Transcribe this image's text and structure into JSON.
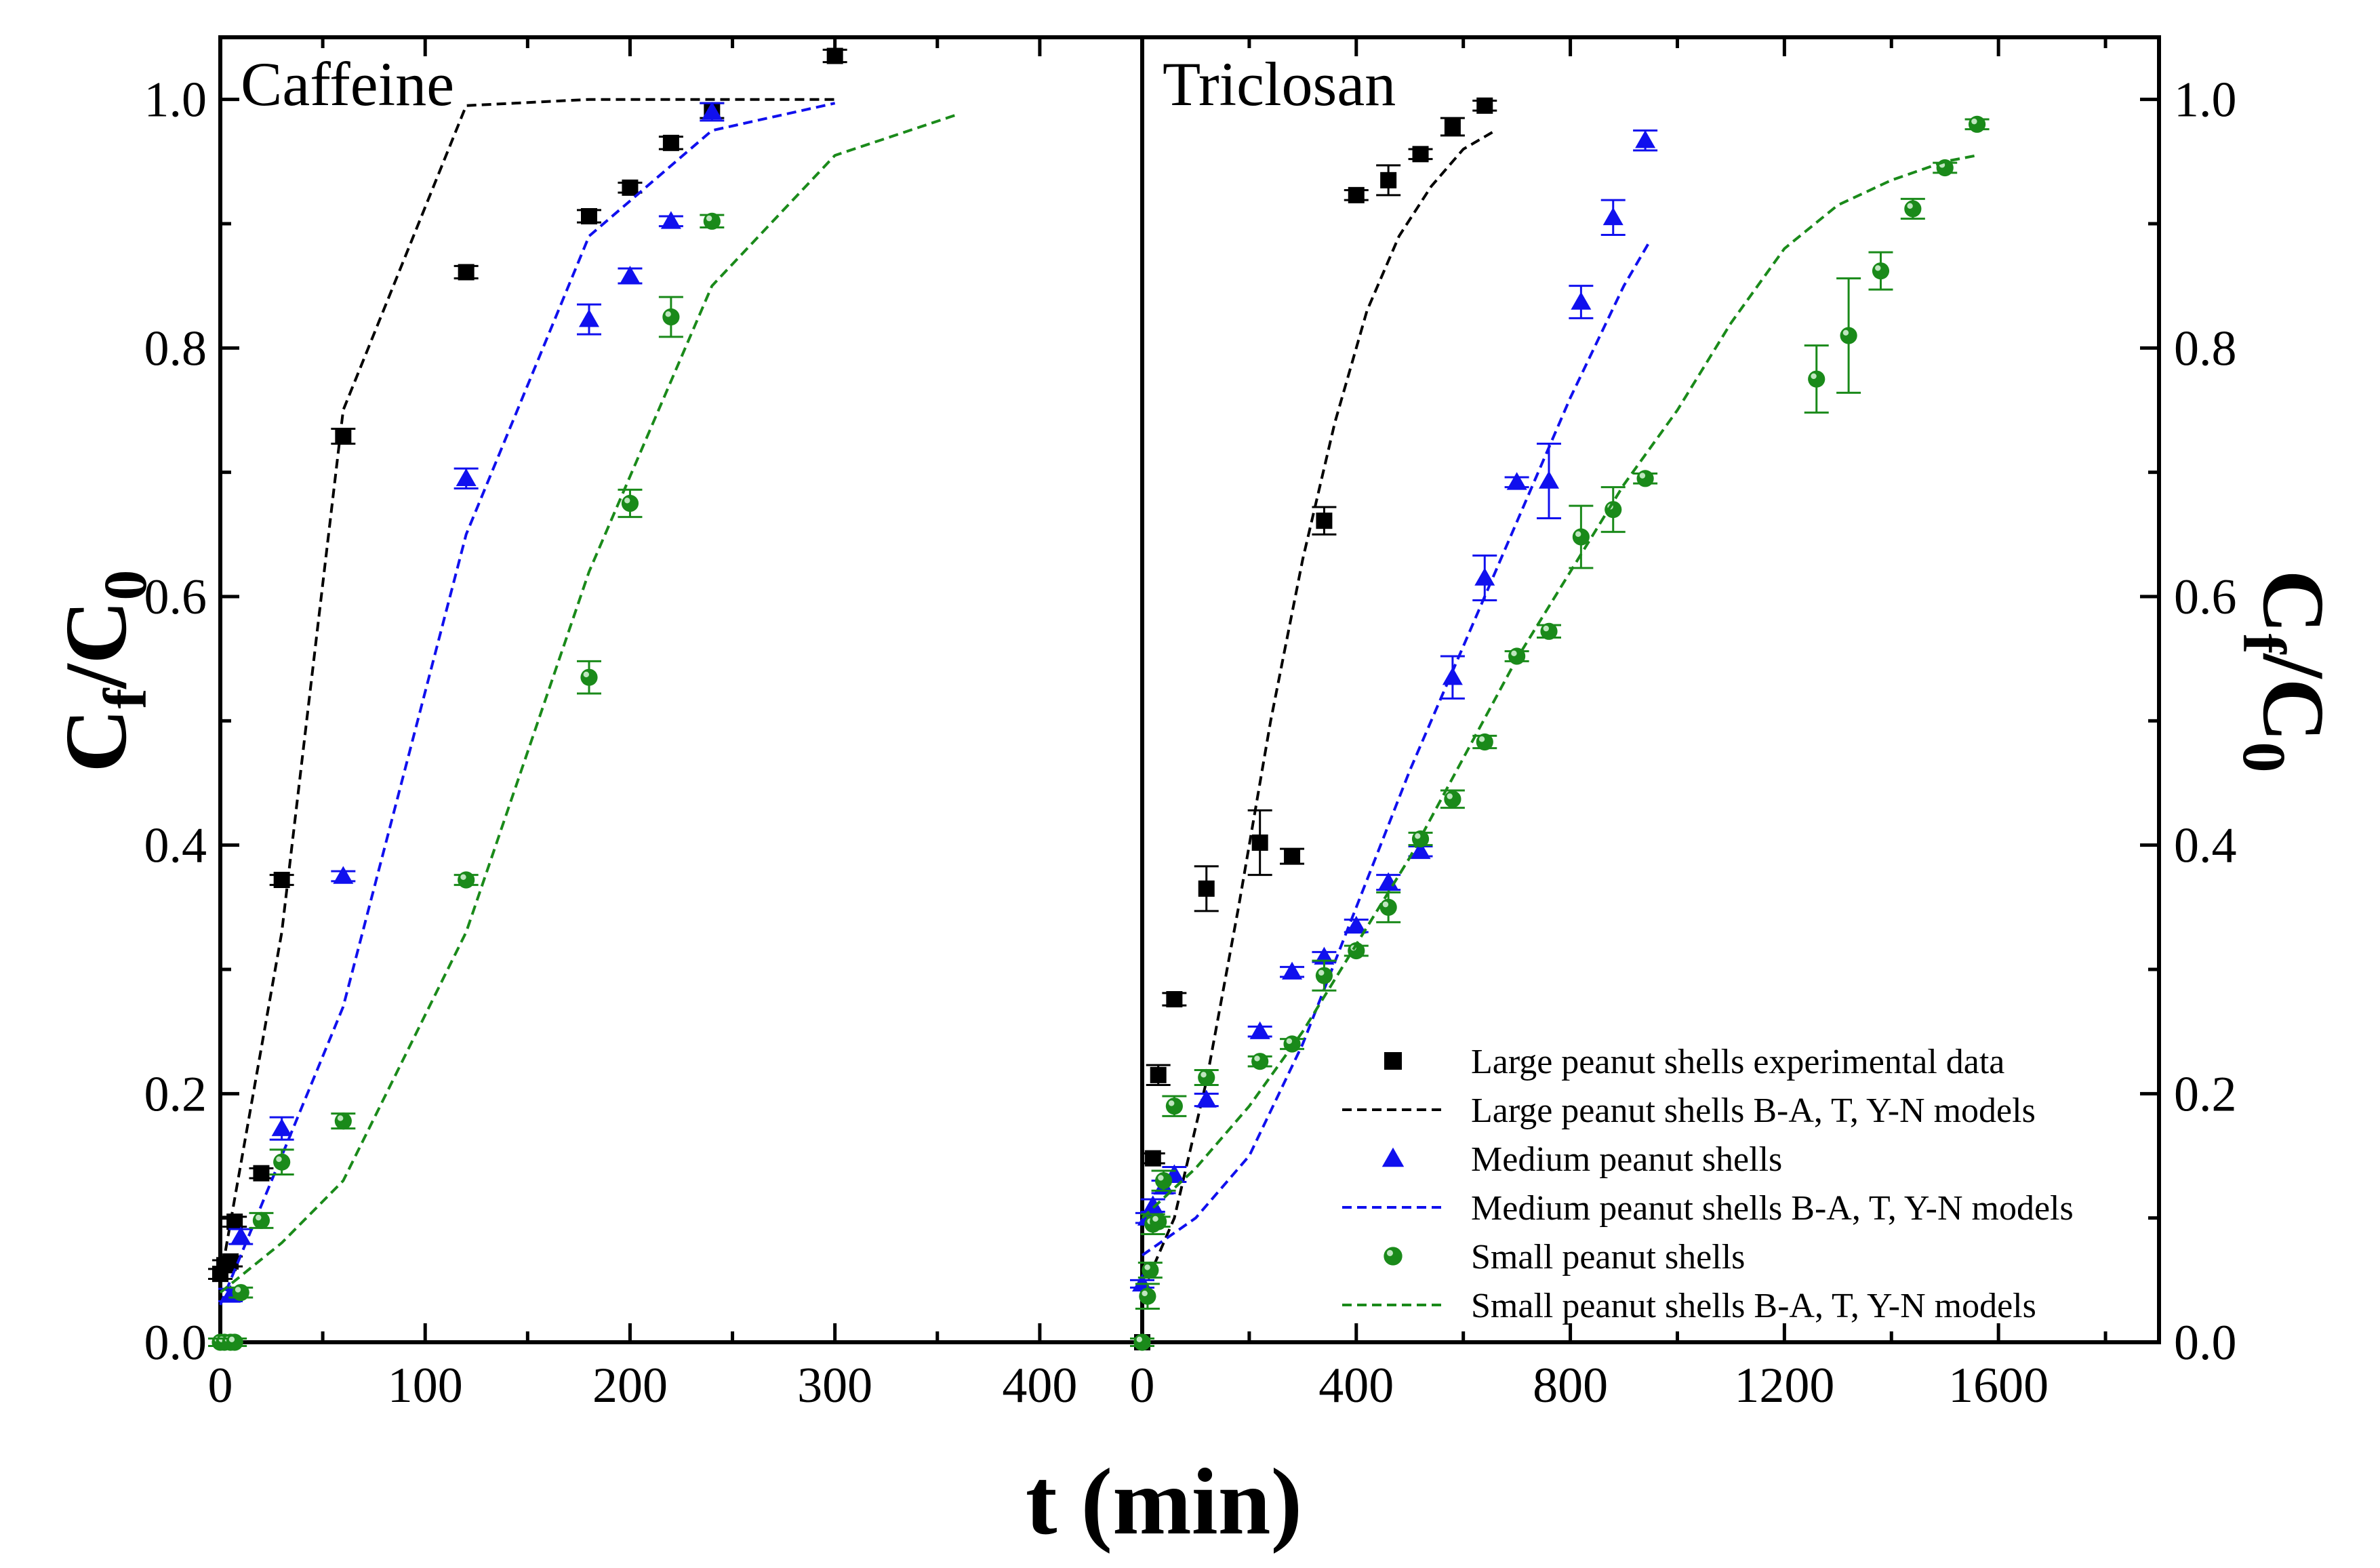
{
  "chart_data": [
    {
      "type": "scatter",
      "title": "Caffeine",
      "xlabel": "t (min)",
      "ylabel": "Cf/C0",
      "xlim": [
        0,
        450
      ],
      "ylim": [
        0,
        1.05
      ],
      "xticks": [
        0,
        100,
        200,
        300,
        400
      ],
      "xtick_labels": [
        "0",
        "100",
        "200",
        "300",
        "400"
      ],
      "yticks": [
        0.0,
        0.2,
        0.4,
        0.6,
        0.8,
        1.0
      ],
      "ytick_labels": [
        "0.0",
        "0.2",
        "0.4",
        "0.6",
        "0.8",
        "1.0"
      ],
      "grid": false,
      "series": [
        {
          "name": "Large peanut shells experimental data",
          "kind": "points",
          "marker": "square",
          "color": "#000000",
          "x": [
            0,
            2,
            5,
            7,
            20,
            30,
            60,
            120,
            180,
            200,
            220,
            240,
            300
          ],
          "y": [
            0.055,
            0.062,
            0.065,
            0.097,
            0.136,
            0.372,
            0.729,
            0.861,
            0.906,
            0.929,
            0.965,
            0.991,
            1.035
          ],
          "err": [
            0.004,
            0.004,
            0.004,
            0.004,
            0.004,
            0.004,
            0.006,
            0.005,
            0.005,
            0.004,
            0.005,
            0.006,
            0.005
          ]
        },
        {
          "name": "Large peanut shells B-A, T, Y-N models",
          "kind": "line",
          "color": "#000000",
          "x": [
            0,
            30,
            60,
            120,
            180,
            240,
            300
          ],
          "y": [
            0.05,
            0.33,
            0.75,
            0.995,
            1.0,
            1.0,
            1.0
          ]
        },
        {
          "name": "Medium peanut shells",
          "kind": "points",
          "marker": "triangle",
          "color": "#1010ee",
          "x": [
            5,
            10,
            30,
            60,
            120,
            180,
            200,
            220,
            240
          ],
          "y": [
            0.038,
            0.085,
            0.172,
            0.375,
            0.695,
            0.823,
            0.858,
            0.902,
            0.99
          ],
          "err": [
            0.005,
            0.006,
            0.009,
            0.004,
            0.008,
            0.012,
            0.006,
            0.004,
            0.007
          ]
        },
        {
          "name": "Medium peanut shells B-A, T, Y-N models",
          "kind": "line",
          "color": "#1010ee",
          "x": [
            0,
            30,
            60,
            120,
            180,
            240,
            300
          ],
          "y": [
            0.03,
            0.15,
            0.27,
            0.65,
            0.89,
            0.975,
            0.997
          ]
        },
        {
          "name": "Small peanut shells",
          "kind": "points",
          "marker": "circle",
          "color": "#1a8a1a",
          "x": [
            0,
            2,
            5,
            7,
            10,
            20,
            30,
            60,
            120,
            180,
            200,
            220,
            240
          ],
          "y": [
            0.0,
            0.0,
            0.0,
            0.0,
            0.04,
            0.098,
            0.145,
            0.178,
            0.372,
            0.535,
            0.675,
            0.825,
            0.902
          ],
          "err": [
            0.003,
            0.003,
            0.003,
            0.003,
            0.004,
            0.006,
            0.01,
            0.006,
            0.004,
            0.013,
            0.011,
            0.016,
            0.005
          ]
        },
        {
          "name": "Small peanut shells B-A, T, Y-N models",
          "kind": "line",
          "color": "#1a8a1a",
          "x": [
            0,
            30,
            60,
            120,
            180,
            240,
            300,
            360
          ],
          "y": [
            0.04,
            0.08,
            0.13,
            0.33,
            0.62,
            0.85,
            0.955,
            0.988
          ]
        }
      ]
    },
    {
      "type": "scatter",
      "title": "Triclosan",
      "xlabel": "t (min)",
      "ylabel": "Cf/C0",
      "xlim": [
        0,
        1900
      ],
      "ylim": [
        0,
        1.05
      ],
      "xticks": [
        0,
        400,
        800,
        1200,
        1600
      ],
      "xtick_labels": [
        "0",
        "400",
        "800",
        "1200",
        "1600"
      ],
      "yticks": [
        0.0,
        0.2,
        0.4,
        0.6,
        0.8,
        1.0
      ],
      "ytick_labels": [
        "0.0",
        "0.2",
        "0.4",
        "0.6",
        "0.8",
        "1.0"
      ],
      "grid": false,
      "legend_position": "bottom-right",
      "series": [
        {
          "name": "Large peanut shells experimental data",
          "kind": "points",
          "marker": "square",
          "color": "#000000",
          "x": [
            0,
            20,
            30,
            60,
            120,
            220,
            280,
            340,
            400,
            460,
            520,
            580,
            640
          ],
          "y": [
            0.0,
            0.148,
            0.215,
            0.276,
            0.365,
            0.402,
            0.391,
            0.661,
            0.923,
            0.935,
            0.956,
            0.978,
            0.995
          ],
          "err": [
            0.003,
            0.004,
            0.008,
            0.005,
            0.018,
            0.026,
            0.006,
            0.011,
            0.004,
            0.012,
            0.004,
            0.007,
            0.004
          ]
        },
        {
          "name": "Large peanut shells B-A, T, Y-N models",
          "kind": "line",
          "color": "#000000",
          "x": [
            0,
            60,
            120,
            180,
            240,
            300,
            360,
            420,
            480,
            540,
            600,
            660
          ],
          "y": [
            0.04,
            0.1,
            0.21,
            0.35,
            0.5,
            0.63,
            0.74,
            0.83,
            0.89,
            0.93,
            0.96,
            0.975
          ]
        },
        {
          "name": "Medium peanut shells",
          "kind": "points",
          "marker": "triangle",
          "color": "#1010ee",
          "x": [
            0,
            10,
            20,
            40,
            60,
            120,
            220,
            280,
            340,
            400,
            460,
            520,
            580,
            640,
            700,
            760,
            820,
            880,
            940
          ],
          "y": [
            0.047,
            0.1,
            0.11,
            0.125,
            0.135,
            0.195,
            0.25,
            0.298,
            0.31,
            0.335,
            0.37,
            0.395,
            0.535,
            0.615,
            0.692,
            0.693,
            0.837,
            0.905,
            0.967
          ],
          "err": [
            0.003,
            0.004,
            0.005,
            0.005,
            0.006,
            0.005,
            0.004,
            0.004,
            0.004,
            0.005,
            0.006,
            0.004,
            0.017,
            0.018,
            0.004,
            0.03,
            0.013,
            0.014,
            0.008
          ]
        },
        {
          "name": "Medium peanut shells B-A, T, Y-N models",
          "kind": "line",
          "color": "#1010ee",
          "x": [
            0,
            100,
            200,
            300,
            400,
            500,
            600,
            700,
            800,
            900,
            950
          ],
          "y": [
            0.07,
            0.1,
            0.15,
            0.24,
            0.35,
            0.46,
            0.56,
            0.66,
            0.76,
            0.85,
            0.887
          ]
        },
        {
          "name": "Small peanut shells",
          "kind": "points",
          "marker": "circle",
          "color": "#1a8a1a",
          "x": [
            0,
            10,
            15,
            20,
            30,
            40,
            60,
            120,
            220,
            280,
            340,
            400,
            460,
            520,
            580,
            640,
            700,
            760,
            820,
            880,
            940,
            1260,
            1320,
            1380,
            1440,
            1500,
            1560
          ],
          "y": [
            0.0,
            0.037,
            0.058,
            0.095,
            0.097,
            0.13,
            0.19,
            0.213,
            0.226,
            0.24,
            0.295,
            0.315,
            0.35,
            0.405,
            0.437,
            0.483,
            0.552,
            0.572,
            0.648,
            0.67,
            0.695,
            0.775,
            0.81,
            0.862,
            0.912,
            0.945,
            0.98
          ],
          "err": [
            0.003,
            0.01,
            0.006,
            0.008,
            0.004,
            0.008,
            0.008,
            0.006,
            0.004,
            0.004,
            0.012,
            0.004,
            0.012,
            0.005,
            0.007,
            0.005,
            0.004,
            0.005,
            0.025,
            0.018,
            0.004,
            0.027,
            0.046,
            0.015,
            0.008,
            0.004,
            0.004
          ]
        },
        {
          "name": "Small peanut shells B-A, T, Y-N models",
          "kind": "line",
          "color": "#1a8a1a",
          "x": [
            0,
            100,
            200,
            300,
            400,
            500,
            600,
            700,
            800,
            900,
            1000,
            1100,
            1200,
            1300,
            1400,
            1500,
            1560
          ],
          "y": [
            0.1,
            0.14,
            0.19,
            0.25,
            0.32,
            0.39,
            0.47,
            0.55,
            0.62,
            0.69,
            0.75,
            0.82,
            0.88,
            0.915,
            0.935,
            0.95,
            0.955
          ]
        }
      ]
    }
  ],
  "axes_text": {
    "xlabel": "t (min)",
    "ylabel_main": "C",
    "ylabel_sub_f": "f",
    "ylabel_slash": "/C",
    "ylabel_sub_0": "0"
  },
  "legend": [
    {
      "label": "Large peanut shells experimental data",
      "kind": "marker",
      "marker": "square",
      "color": "#000000"
    },
    {
      "label": "Large peanut shells B-A, T, Y-N models",
      "kind": "line",
      "color": "#000000"
    },
    {
      "label": "Medium peanut shells",
      "kind": "marker",
      "marker": "triangle",
      "color": "#1010ee"
    },
    {
      "label": "Medium peanut shells B-A, T, Y-N models",
      "kind": "line",
      "color": "#1010ee"
    },
    {
      "label": "Small peanut shells",
      "kind": "marker",
      "marker": "circle",
      "color": "#1a8a1a"
    },
    {
      "label": "Small peanut shells B-A, T, Y-N models",
      "kind": "line",
      "color": "#1a8a1a"
    }
  ]
}
